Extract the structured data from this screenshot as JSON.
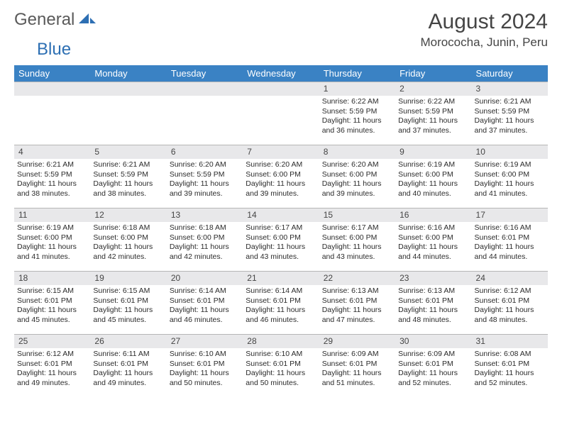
{
  "brand": {
    "part1": "General",
    "part2": "Blue"
  },
  "title": "August 2024",
  "location": "Morococha, Junin, Peru",
  "colors": {
    "header_bg": "#3a82c4",
    "header_text": "#ffffff",
    "daynum_bg": "#e8e8ea",
    "border": "#b6b6b6",
    "text": "#2b2b2b",
    "title_text": "#454545"
  },
  "day_labels": [
    "Sunday",
    "Monday",
    "Tuesday",
    "Wednesday",
    "Thursday",
    "Friday",
    "Saturday"
  ],
  "weeks": [
    [
      {
        "day": ""
      },
      {
        "day": ""
      },
      {
        "day": ""
      },
      {
        "day": ""
      },
      {
        "day": "1",
        "sunrise": "Sunrise: 6:22 AM",
        "sunset": "Sunset: 5:59 PM",
        "daylight1": "Daylight: 11 hours",
        "daylight2": "and 36 minutes."
      },
      {
        "day": "2",
        "sunrise": "Sunrise: 6:22 AM",
        "sunset": "Sunset: 5:59 PM",
        "daylight1": "Daylight: 11 hours",
        "daylight2": "and 37 minutes."
      },
      {
        "day": "3",
        "sunrise": "Sunrise: 6:21 AM",
        "sunset": "Sunset: 5:59 PM",
        "daylight1": "Daylight: 11 hours",
        "daylight2": "and 37 minutes."
      }
    ],
    [
      {
        "day": "4",
        "sunrise": "Sunrise: 6:21 AM",
        "sunset": "Sunset: 5:59 PM",
        "daylight1": "Daylight: 11 hours",
        "daylight2": "and 38 minutes."
      },
      {
        "day": "5",
        "sunrise": "Sunrise: 6:21 AM",
        "sunset": "Sunset: 5:59 PM",
        "daylight1": "Daylight: 11 hours",
        "daylight2": "and 38 minutes."
      },
      {
        "day": "6",
        "sunrise": "Sunrise: 6:20 AM",
        "sunset": "Sunset: 5:59 PM",
        "daylight1": "Daylight: 11 hours",
        "daylight2": "and 39 minutes."
      },
      {
        "day": "7",
        "sunrise": "Sunrise: 6:20 AM",
        "sunset": "Sunset: 6:00 PM",
        "daylight1": "Daylight: 11 hours",
        "daylight2": "and 39 minutes."
      },
      {
        "day": "8",
        "sunrise": "Sunrise: 6:20 AM",
        "sunset": "Sunset: 6:00 PM",
        "daylight1": "Daylight: 11 hours",
        "daylight2": "and 39 minutes."
      },
      {
        "day": "9",
        "sunrise": "Sunrise: 6:19 AM",
        "sunset": "Sunset: 6:00 PM",
        "daylight1": "Daylight: 11 hours",
        "daylight2": "and 40 minutes."
      },
      {
        "day": "10",
        "sunrise": "Sunrise: 6:19 AM",
        "sunset": "Sunset: 6:00 PM",
        "daylight1": "Daylight: 11 hours",
        "daylight2": "and 41 minutes."
      }
    ],
    [
      {
        "day": "11",
        "sunrise": "Sunrise: 6:19 AM",
        "sunset": "Sunset: 6:00 PM",
        "daylight1": "Daylight: 11 hours",
        "daylight2": "and 41 minutes."
      },
      {
        "day": "12",
        "sunrise": "Sunrise: 6:18 AM",
        "sunset": "Sunset: 6:00 PM",
        "daylight1": "Daylight: 11 hours",
        "daylight2": "and 42 minutes."
      },
      {
        "day": "13",
        "sunrise": "Sunrise: 6:18 AM",
        "sunset": "Sunset: 6:00 PM",
        "daylight1": "Daylight: 11 hours",
        "daylight2": "and 42 minutes."
      },
      {
        "day": "14",
        "sunrise": "Sunrise: 6:17 AM",
        "sunset": "Sunset: 6:00 PM",
        "daylight1": "Daylight: 11 hours",
        "daylight2": "and 43 minutes."
      },
      {
        "day": "15",
        "sunrise": "Sunrise: 6:17 AM",
        "sunset": "Sunset: 6:00 PM",
        "daylight1": "Daylight: 11 hours",
        "daylight2": "and 43 minutes."
      },
      {
        "day": "16",
        "sunrise": "Sunrise: 6:16 AM",
        "sunset": "Sunset: 6:00 PM",
        "daylight1": "Daylight: 11 hours",
        "daylight2": "and 44 minutes."
      },
      {
        "day": "17",
        "sunrise": "Sunrise: 6:16 AM",
        "sunset": "Sunset: 6:01 PM",
        "daylight1": "Daylight: 11 hours",
        "daylight2": "and 44 minutes."
      }
    ],
    [
      {
        "day": "18",
        "sunrise": "Sunrise: 6:15 AM",
        "sunset": "Sunset: 6:01 PM",
        "daylight1": "Daylight: 11 hours",
        "daylight2": "and 45 minutes."
      },
      {
        "day": "19",
        "sunrise": "Sunrise: 6:15 AM",
        "sunset": "Sunset: 6:01 PM",
        "daylight1": "Daylight: 11 hours",
        "daylight2": "and 45 minutes."
      },
      {
        "day": "20",
        "sunrise": "Sunrise: 6:14 AM",
        "sunset": "Sunset: 6:01 PM",
        "daylight1": "Daylight: 11 hours",
        "daylight2": "and 46 minutes."
      },
      {
        "day": "21",
        "sunrise": "Sunrise: 6:14 AM",
        "sunset": "Sunset: 6:01 PM",
        "daylight1": "Daylight: 11 hours",
        "daylight2": "and 46 minutes."
      },
      {
        "day": "22",
        "sunrise": "Sunrise: 6:13 AM",
        "sunset": "Sunset: 6:01 PM",
        "daylight1": "Daylight: 11 hours",
        "daylight2": "and 47 minutes."
      },
      {
        "day": "23",
        "sunrise": "Sunrise: 6:13 AM",
        "sunset": "Sunset: 6:01 PM",
        "daylight1": "Daylight: 11 hours",
        "daylight2": "and 48 minutes."
      },
      {
        "day": "24",
        "sunrise": "Sunrise: 6:12 AM",
        "sunset": "Sunset: 6:01 PM",
        "daylight1": "Daylight: 11 hours",
        "daylight2": "and 48 minutes."
      }
    ],
    [
      {
        "day": "25",
        "sunrise": "Sunrise: 6:12 AM",
        "sunset": "Sunset: 6:01 PM",
        "daylight1": "Daylight: 11 hours",
        "daylight2": "and 49 minutes."
      },
      {
        "day": "26",
        "sunrise": "Sunrise: 6:11 AM",
        "sunset": "Sunset: 6:01 PM",
        "daylight1": "Daylight: 11 hours",
        "daylight2": "and 49 minutes."
      },
      {
        "day": "27",
        "sunrise": "Sunrise: 6:10 AM",
        "sunset": "Sunset: 6:01 PM",
        "daylight1": "Daylight: 11 hours",
        "daylight2": "and 50 minutes."
      },
      {
        "day": "28",
        "sunrise": "Sunrise: 6:10 AM",
        "sunset": "Sunset: 6:01 PM",
        "daylight1": "Daylight: 11 hours",
        "daylight2": "and 50 minutes."
      },
      {
        "day": "29",
        "sunrise": "Sunrise: 6:09 AM",
        "sunset": "Sunset: 6:01 PM",
        "daylight1": "Daylight: 11 hours",
        "daylight2": "and 51 minutes."
      },
      {
        "day": "30",
        "sunrise": "Sunrise: 6:09 AM",
        "sunset": "Sunset: 6:01 PM",
        "daylight1": "Daylight: 11 hours",
        "daylight2": "and 52 minutes."
      },
      {
        "day": "31",
        "sunrise": "Sunrise: 6:08 AM",
        "sunset": "Sunset: 6:01 PM",
        "daylight1": "Daylight: 11 hours",
        "daylight2": "and 52 minutes."
      }
    ]
  ]
}
